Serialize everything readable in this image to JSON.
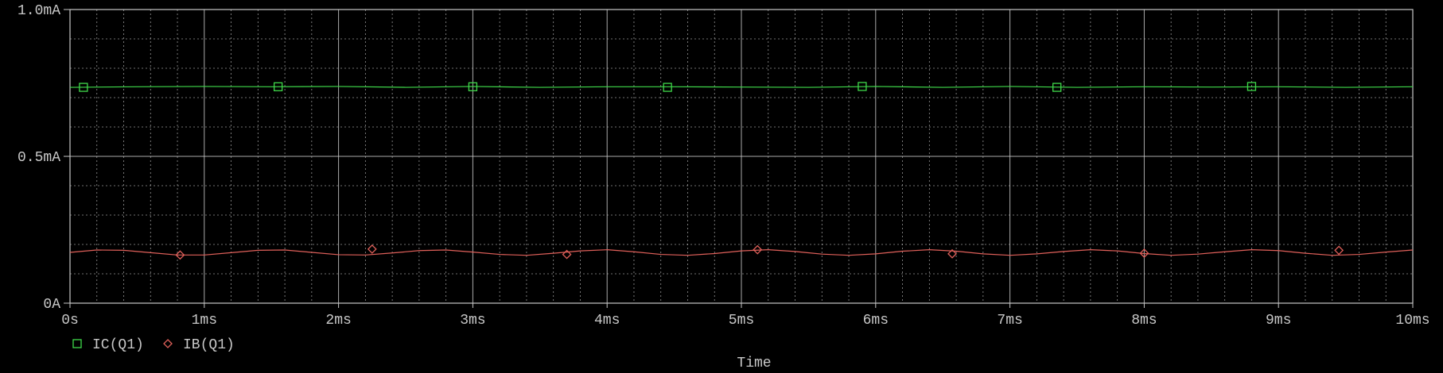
{
  "colors": {
    "background": "#000000",
    "frame": "#c8c8c8",
    "grid": "#c8c8c8",
    "text": "#c8c8c8",
    "ic": "#3fd94a",
    "ib": "#e0605a"
  },
  "chart_data": {
    "type": "line",
    "title": "",
    "xlabel": "Time",
    "ylabel": "",
    "xlim": [
      0,
      10
    ],
    "ylim": [
      0,
      1.0
    ],
    "x_unit": "ms",
    "x_ticks": [
      0,
      1,
      2,
      3,
      4,
      5,
      6,
      7,
      8,
      9,
      10
    ],
    "x_tick_labels": [
      "0s",
      "1ms",
      "2ms",
      "3ms",
      "4ms",
      "5ms",
      "6ms",
      "7ms",
      "8ms",
      "9ms",
      "10ms"
    ],
    "y_ticks": [
      0,
      0.5,
      1.0
    ],
    "y_tick_labels": [
      "0A",
      "0.5mA",
      "1.0mA"
    ],
    "grid": "dotted minor + solid major",
    "legend_position": "bottom-left",
    "series": [
      {
        "name": "IC(Q1)",
        "marker": "square",
        "x": [
          0,
          0.5,
          1,
          1.5,
          2,
          2.5,
          3,
          3.5,
          4,
          4.5,
          5,
          5.5,
          6,
          6.5,
          7,
          7.5,
          8,
          8.5,
          9,
          9.5,
          10
        ],
        "y": [
          0.735,
          0.737,
          0.738,
          0.737,
          0.738,
          0.735,
          0.738,
          0.735,
          0.737,
          0.737,
          0.736,
          0.735,
          0.738,
          0.735,
          0.738,
          0.735,
          0.737,
          0.736,
          0.737,
          0.735,
          0.737
        ],
        "marker_x": [
          0.1,
          1.55,
          3.0,
          4.45,
          5.9,
          7.35,
          8.8
        ],
        "marker_y": [
          0.735,
          0.737,
          0.737,
          0.735,
          0.738,
          0.735,
          0.738
        ]
      },
      {
        "name": "IB(Q1)",
        "marker": "diamond",
        "x": [
          0,
          0.2,
          0.4,
          0.6,
          0.8,
          1.0,
          1.2,
          1.4,
          1.6,
          1.8,
          2.0,
          2.2,
          2.4,
          2.6,
          2.8,
          3.0,
          3.2,
          3.4,
          3.6,
          3.8,
          4.0,
          4.2,
          4.4,
          4.6,
          4.8,
          5.0,
          5.2,
          5.4,
          5.6,
          5.8,
          6.0,
          6.2,
          6.4,
          6.6,
          6.8,
          7.0,
          7.2,
          7.4,
          7.6,
          7.8,
          8.0,
          8.2,
          8.4,
          8.6,
          8.8,
          9.0,
          9.2,
          9.4,
          9.6,
          9.8,
          10.0
        ],
        "y": [
          0.173,
          0.181,
          0.18,
          0.172,
          0.164,
          0.164,
          0.172,
          0.18,
          0.181,
          0.173,
          0.165,
          0.164,
          0.171,
          0.179,
          0.181,
          0.174,
          0.166,
          0.163,
          0.17,
          0.178,
          0.182,
          0.175,
          0.166,
          0.163,
          0.169,
          0.178,
          0.182,
          0.176,
          0.167,
          0.163,
          0.168,
          0.177,
          0.182,
          0.177,
          0.168,
          0.163,
          0.168,
          0.176,
          0.182,
          0.178,
          0.169,
          0.163,
          0.167,
          0.175,
          0.182,
          0.179,
          0.17,
          0.163,
          0.166,
          0.174,
          0.181
        ],
        "marker_x": [
          0.82,
          2.25,
          3.7,
          5.12,
          6.57,
          8.0,
          9.45
        ],
        "marker_y": [
          0.164,
          0.184,
          0.166,
          0.182,
          0.168,
          0.17,
          0.18
        ]
      }
    ]
  }
}
